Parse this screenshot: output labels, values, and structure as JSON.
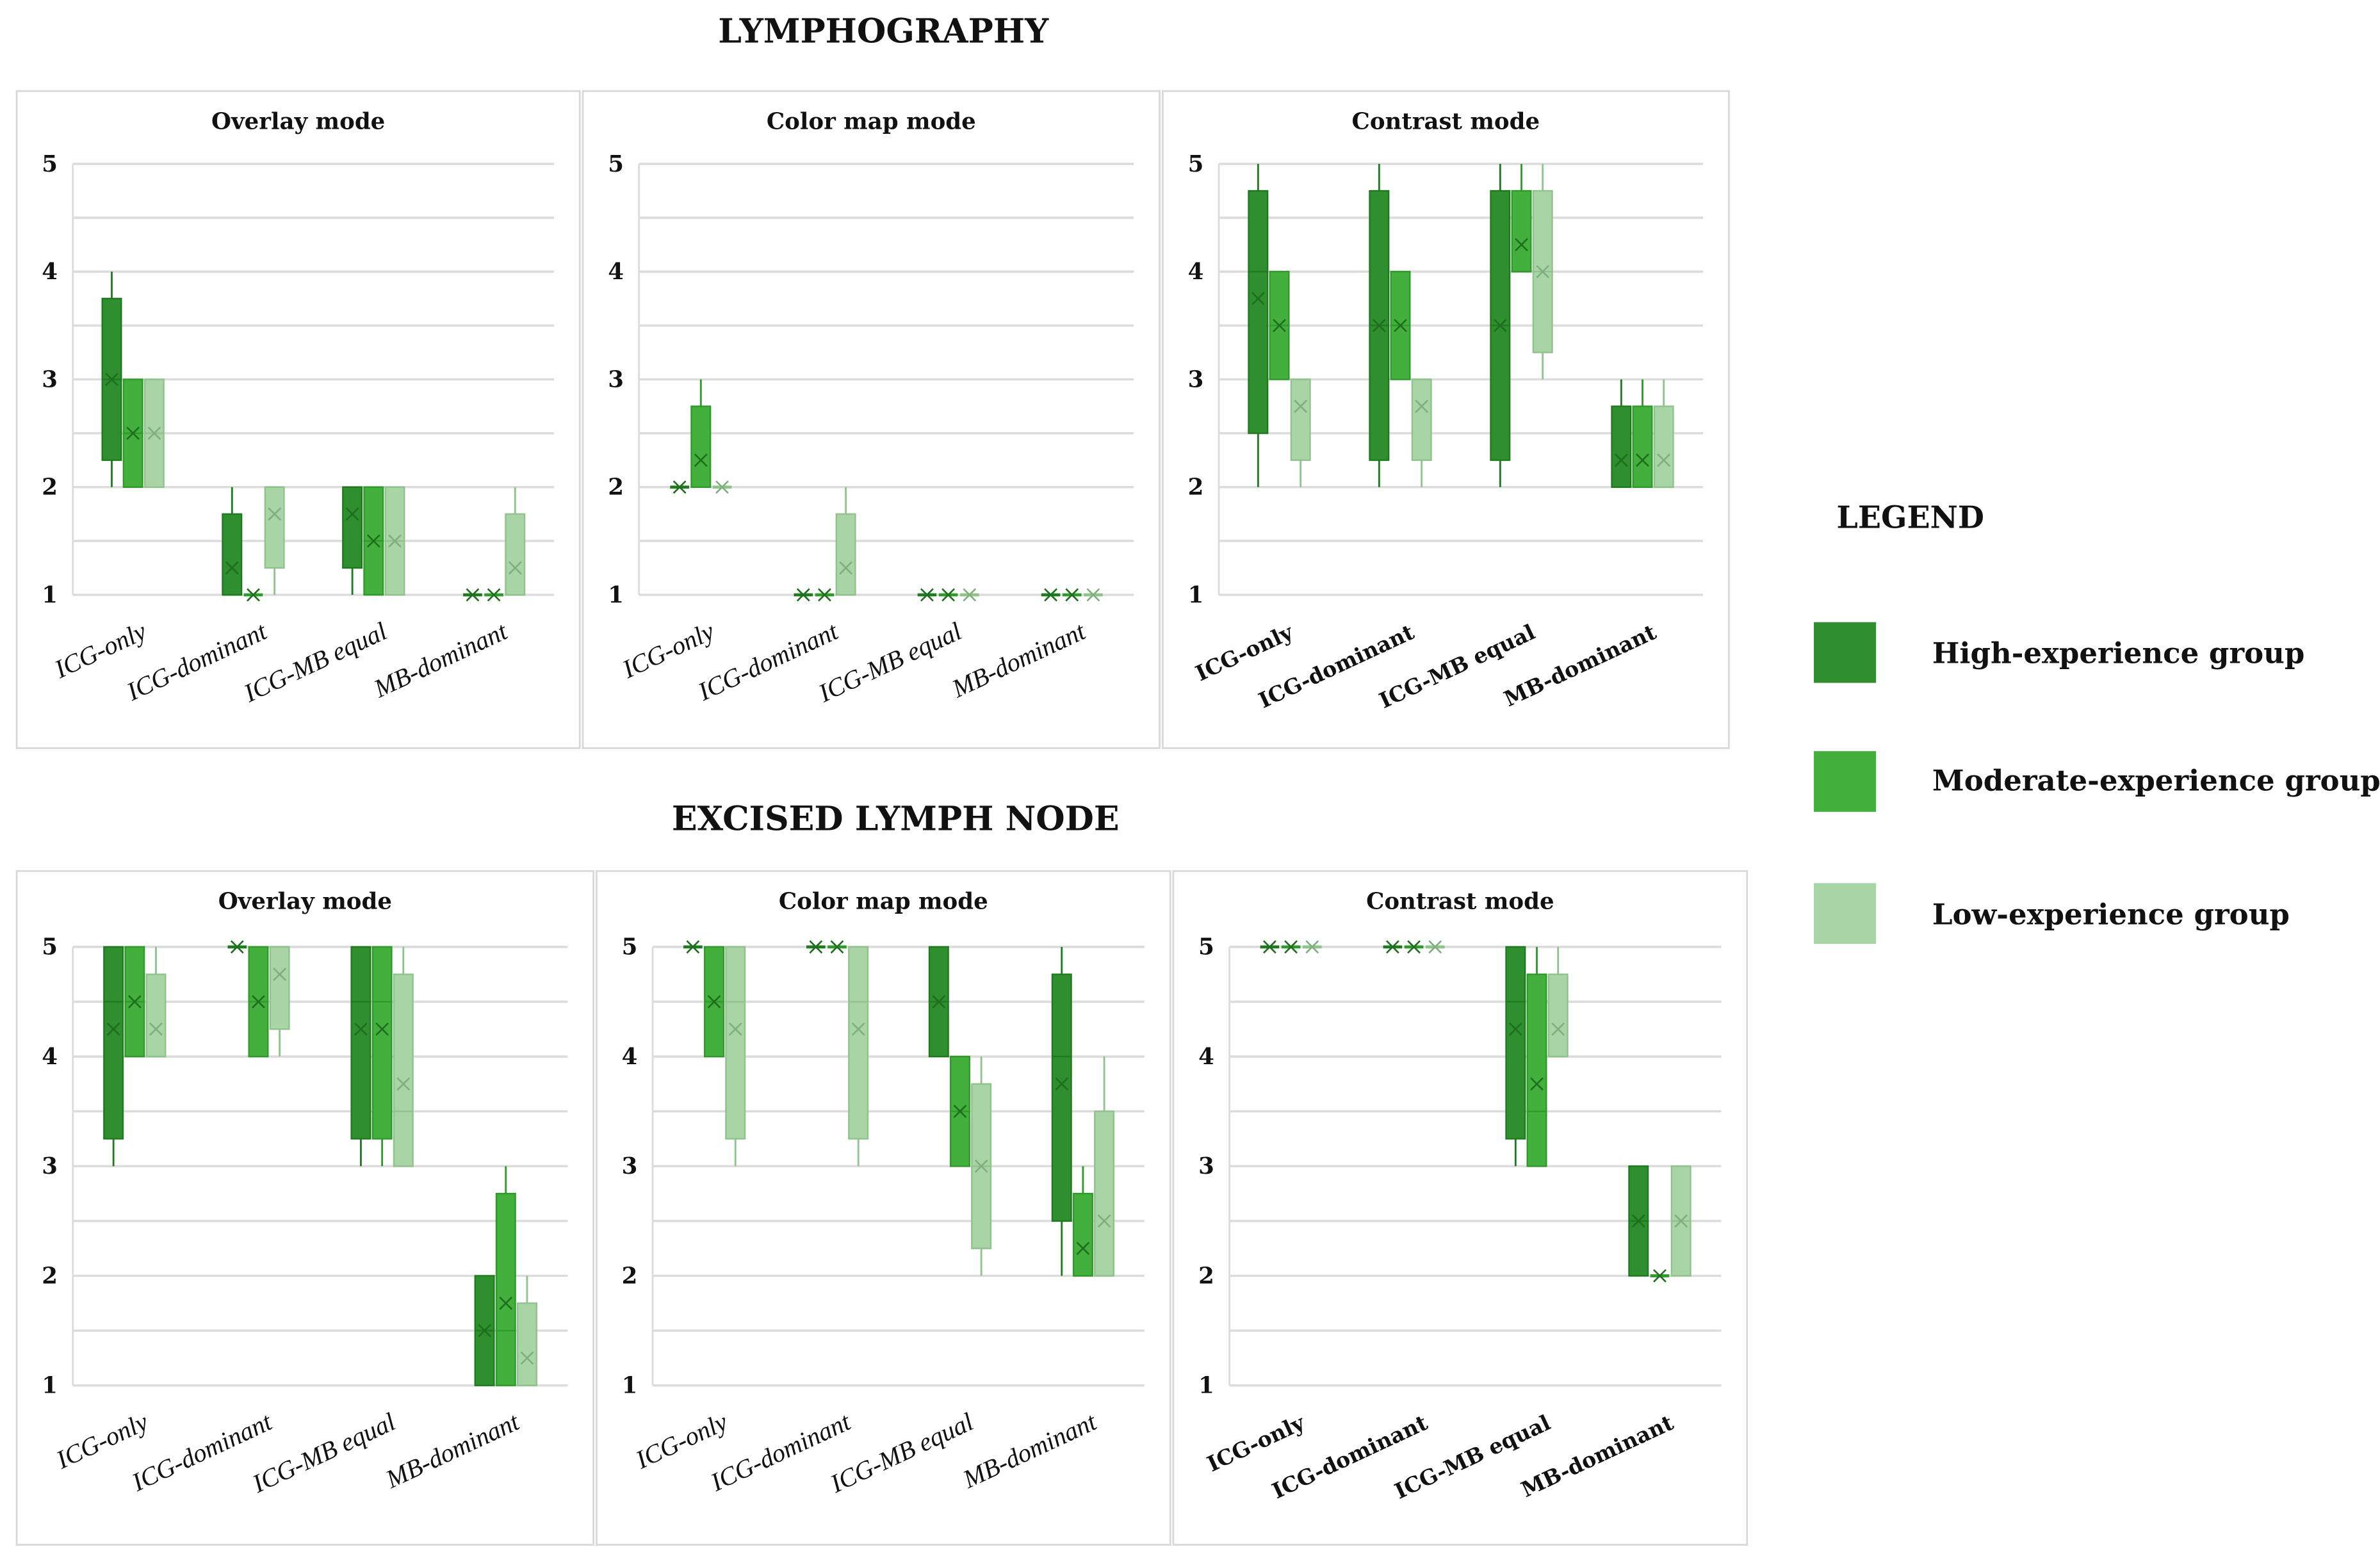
{
  "chart_data": {
    "type": "boxplot",
    "sections": [
      {
        "title": "LYMPHOGRAPHY",
        "panels": [
          {
            "title": "Overlay mode",
            "label_style": "italic"
          },
          {
            "title": "Color map mode",
            "label_style": "italic"
          },
          {
            "title": "Contrast mode",
            "label_style": "bold"
          }
        ]
      },
      {
        "title": "EXCISED LYMPH NODE",
        "panels": [
          {
            "title": "Overlay mode",
            "label_style": "italic"
          },
          {
            "title": "Color map mode",
            "label_style": "italic"
          },
          {
            "title": "Contrast mode",
            "label_style": "bold"
          }
        ]
      }
    ],
    "categories": [
      "ICG-only",
      "ICG-dominant",
      "ICG-MB equal",
      "MB-dominant"
    ],
    "y_ticks": [
      "1",
      "2",
      "3",
      "4",
      "5"
    ],
    "ylim": [
      1,
      5
    ],
    "grid": true,
    "stat_order": [
      "min",
      "q1",
      "median",
      "q3",
      "max",
      "mean"
    ],
    "series": [
      {
        "name": "High-experience group",
        "color": "#2f8f2f"
      },
      {
        "name": "Moderate-experience group",
        "color": "#43b03d"
      },
      {
        "name": "Low-experience group",
        "color": "#a9d4a6"
      }
    ],
    "data": [
      [
        [
          [
            [
              2,
              2.25,
              3,
              3.75,
              4,
              3
            ],
            [
              2,
              2,
              2.5,
              3,
              3,
              2.5
            ],
            [
              2,
              2,
              2.5,
              3,
              3,
              2.5
            ]
          ],
          [
            [
              1,
              1,
              1,
              1.75,
              2,
              1.25
            ],
            [
              1,
              1,
              1,
              1,
              1,
              1
            ],
            [
              1,
              1.25,
              2,
              2,
              2,
              1.75
            ]
          ],
          [
            [
              1,
              1.25,
              2,
              2,
              2,
              1.75
            ],
            [
              1,
              1,
              1.5,
              2,
              2,
              1.5
            ],
            [
              1,
              1,
              1.5,
              2,
              2,
              1.5
            ]
          ],
          [
            [
              1,
              1,
              1,
              1,
              1,
              1
            ],
            [
              1,
              1,
              1,
              1,
              1,
              1
            ],
            [
              1,
              1,
              1,
              1.75,
              2,
              1.25
            ]
          ]
        ],
        [
          [
            [
              2,
              2,
              2,
              2,
              2,
              2
            ],
            [
              2,
              2,
              2,
              2.75,
              3,
              2.25
            ],
            [
              2,
              2,
              2,
              2,
              2,
              2
            ]
          ],
          [
            [
              1,
              1,
              1,
              1,
              1,
              1
            ],
            [
              1,
              1,
              1,
              1,
              1,
              1
            ],
            [
              1,
              1,
              1,
              1.75,
              2,
              1.25
            ]
          ],
          [
            [
              1,
              1,
              1,
              1,
              1,
              1
            ],
            [
              1,
              1,
              1,
              1,
              1,
              1
            ],
            [
              1,
              1,
              1,
              1,
              1,
              1
            ]
          ],
          [
            [
              1,
              1,
              1,
              1,
              1,
              1
            ],
            [
              1,
              1,
              1,
              1,
              1,
              1
            ],
            [
              1,
              1,
              1,
              1,
              1,
              1
            ]
          ]
        ],
        [
          [
            [
              2,
              2.5,
              4,
              4.75,
              5,
              3.75
            ],
            [
              3,
              3,
              3.5,
              4,
              4,
              3.5
            ],
            [
              2,
              2.25,
              3,
              3,
              3,
              2.75
            ]
          ],
          [
            [
              2,
              2.25,
              3.5,
              4.75,
              5,
              3.5
            ],
            [
              3,
              3,
              3.5,
              4,
              4,
              3.5
            ],
            [
              2,
              2.25,
              3,
              3,
              3,
              2.75
            ]
          ],
          [
            [
              2,
              2.25,
              3.5,
              4.75,
              5,
              3.5
            ],
            [
              4,
              4,
              4,
              4.75,
              5,
              4.25
            ],
            [
              3,
              3.25,
              4,
              4.75,
              5,
              4
            ]
          ],
          [
            [
              2,
              2,
              2,
              2.75,
              3,
              2.25
            ],
            [
              2,
              2,
              2,
              2.75,
              3,
              2.25
            ],
            [
              2,
              2,
              2,
              2.75,
              3,
              2.25
            ]
          ]
        ]
      ],
      [
        [
          [
            [
              3,
              3.25,
              4.5,
              5,
              5,
              4.25
            ],
            [
              4,
              4,
              4.5,
              5,
              5,
              4.5
            ],
            [
              4,
              4,
              4,
              4.75,
              5,
              4.25
            ]
          ],
          [
            [
              5,
              5,
              5,
              5,
              5,
              5
            ],
            [
              4,
              4,
              4.5,
              5,
              5,
              4.5
            ],
            [
              4,
              4.25,
              5,
              5,
              5,
              4.75
            ]
          ],
          [
            [
              3,
              3.25,
              4.5,
              5,
              5,
              4.25
            ],
            [
              3,
              3.25,
              4.5,
              5,
              5,
              4.25
            ],
            [
              3,
              3,
              3.5,
              4.75,
              5,
              3.75
            ]
          ],
          [
            [
              1,
              1,
              1.5,
              2,
              2,
              1.5
            ],
            [
              1,
              1,
              1.5,
              2.75,
              3,
              1.75
            ],
            [
              1,
              1,
              1,
              1.75,
              2,
              1.25
            ]
          ]
        ],
        [
          [
            [
              5,
              5,
              5,
              5,
              5,
              5
            ],
            [
              4,
              4,
              4.5,
              5,
              5,
              4.5
            ],
            [
              3,
              3.25,
              4.5,
              5,
              5,
              4.25
            ]
          ],
          [
            [
              5,
              5,
              5,
              5,
              5,
              5
            ],
            [
              5,
              5,
              5,
              5,
              5,
              5
            ],
            [
              3,
              3.25,
              4.5,
              5,
              5,
              4.25
            ]
          ],
          [
            [
              4,
              4,
              4.5,
              5,
              5,
              4.5
            ],
            [
              3,
              3,
              3.5,
              4,
              4,
              3.5
            ],
            [
              2,
              2.25,
              3,
              3.75,
              4,
              3
            ]
          ],
          [
            [
              2,
              2.5,
              4,
              4.75,
              5,
              3.75
            ],
            [
              2,
              2,
              2,
              2.75,
              3,
              2.25
            ],
            [
              2,
              2,
              2,
              3.5,
              4,
              2.5
            ]
          ]
        ],
        [
          [
            [
              5,
              5,
              5,
              5,
              5,
              5
            ],
            [
              5,
              5,
              5,
              5,
              5,
              5
            ],
            [
              5,
              5,
              5,
              5,
              5,
              5
            ]
          ],
          [
            [
              5,
              5,
              5,
              5,
              5,
              5
            ],
            [
              5,
              5,
              5,
              5,
              5,
              5
            ],
            [
              5,
              5,
              5,
              5,
              5,
              5
            ]
          ],
          [
            [
              3,
              3.25,
              4.5,
              5,
              5,
              4.25
            ],
            [
              3,
              3,
              3.5,
              4.75,
              5,
              3.75
            ],
            [
              4,
              4,
              4,
              4.75,
              5,
              4.25
            ]
          ],
          [
            [
              2,
              2,
              2.5,
              3,
              3,
              2.5
            ],
            [
              2,
              2,
              2,
              2,
              2,
              2
            ],
            [
              2,
              2,
              2.5,
              3,
              3,
              2.5
            ]
          ]
        ]
      ]
    ],
    "legend": {
      "title": "LEGEND",
      "placement": "right"
    }
  }
}
